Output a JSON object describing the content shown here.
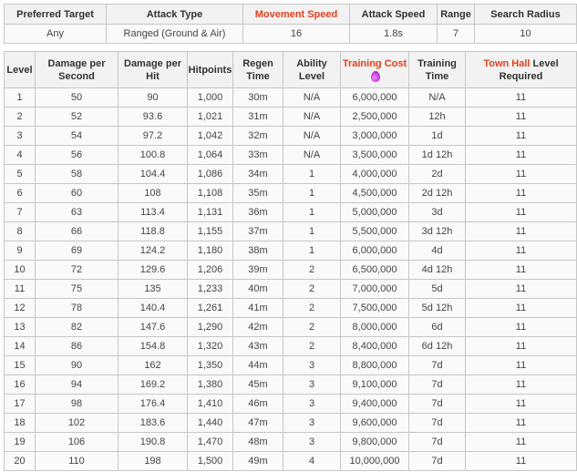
{
  "summary": {
    "headers": [
      {
        "label": "Preferred Target",
        "highlight": false
      },
      {
        "label": "Attack Type",
        "highlight": false
      },
      {
        "label": "Movement Speed",
        "highlight": true
      },
      {
        "label": "Attack Speed",
        "highlight": false
      },
      {
        "label": "Range",
        "highlight": false
      },
      {
        "label": "Search Radius",
        "highlight": false
      }
    ],
    "values": [
      "Any",
      "Ranged (Ground & Air)",
      "16",
      "1.8s",
      "7",
      "10"
    ]
  },
  "levels": {
    "headers": {
      "level": "Level",
      "dps": "Damage per Second",
      "dph": "Damage per Hit",
      "hitpoints": "Hitpoints",
      "regen": "Regen Time",
      "ability": "Ability Level",
      "training_cost": "Training Cost",
      "training_time": "Training Time",
      "th_highlight": "Town Hall",
      "th_rest": " Level Required"
    },
    "cost_icon": "elixir-drop-icon",
    "rows": [
      [
        "1",
        "50",
        "90",
        "1,000",
        "30m",
        "N/A",
        "6,000,000",
        "N/A",
        "11"
      ],
      [
        "2",
        "52",
        "93.6",
        "1,021",
        "31m",
        "N/A",
        "2,500,000",
        "12h",
        "11"
      ],
      [
        "3",
        "54",
        "97.2",
        "1,042",
        "32m",
        "N/A",
        "3,000,000",
        "1d",
        "11"
      ],
      [
        "4",
        "56",
        "100.8",
        "1,064",
        "33m",
        "N/A",
        "3,500,000",
        "1d 12h",
        "11"
      ],
      [
        "5",
        "58",
        "104.4",
        "1,086",
        "34m",
        "1",
        "4,000,000",
        "2d",
        "11"
      ],
      [
        "6",
        "60",
        "108",
        "1,108",
        "35m",
        "1",
        "4,500,000",
        "2d 12h",
        "11"
      ],
      [
        "7",
        "63",
        "113.4",
        "1,131",
        "36m",
        "1",
        "5,000,000",
        "3d",
        "11"
      ],
      [
        "8",
        "66",
        "118.8",
        "1,155",
        "37m",
        "1",
        "5,500,000",
        "3d 12h",
        "11"
      ],
      [
        "9",
        "69",
        "124.2",
        "1,180",
        "38m",
        "1",
        "6,000,000",
        "4d",
        "11"
      ],
      [
        "10",
        "72",
        "129.6",
        "1,206",
        "39m",
        "2",
        "6,500,000",
        "4d 12h",
        "11"
      ],
      [
        "11",
        "75",
        "135",
        "1,233",
        "40m",
        "2",
        "7,000,000",
        "5d",
        "11"
      ],
      [
        "12",
        "78",
        "140.4",
        "1,261",
        "41m",
        "2",
        "7,500,000",
        "5d 12h",
        "11"
      ],
      [
        "13",
        "82",
        "147.6",
        "1,290",
        "42m",
        "2",
        "8,000,000",
        "6d",
        "11"
      ],
      [
        "14",
        "86",
        "154.8",
        "1,320",
        "43m",
        "2",
        "8,400,000",
        "6d 12h",
        "11"
      ],
      [
        "15",
        "90",
        "162",
        "1,350",
        "44m",
        "3",
        "8,800,000",
        "7d",
        "11"
      ],
      [
        "16",
        "94",
        "169.2",
        "1,380",
        "45m",
        "3",
        "9,100,000",
        "7d",
        "11"
      ],
      [
        "17",
        "98",
        "176.4",
        "1,410",
        "46m",
        "3",
        "9,400,000",
        "7d",
        "11"
      ],
      [
        "18",
        "102",
        "183.6",
        "1,440",
        "47m",
        "3",
        "9,600,000",
        "7d",
        "11"
      ],
      [
        "19",
        "106",
        "190.8",
        "1,470",
        "48m",
        "3",
        "9,800,000",
        "7d",
        "11"
      ],
      [
        "20",
        "110",
        "198",
        "1,500",
        "49m",
        "4",
        "10,000,000",
        "7d",
        "11"
      ]
    ]
  }
}
